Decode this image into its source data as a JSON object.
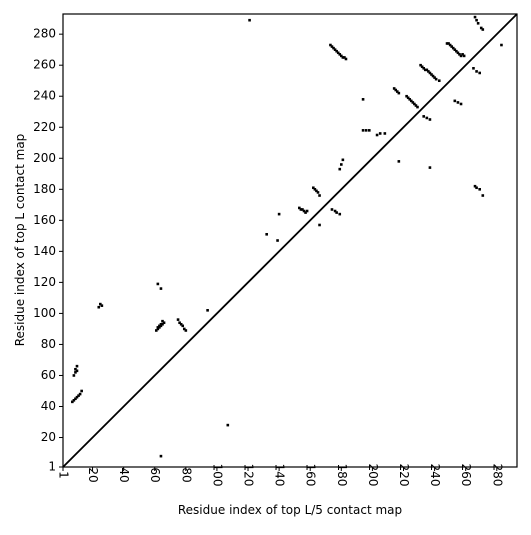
{
  "chart_data": {
    "type": "scatter",
    "x_label": "Residue index of top L/5 contact map",
    "y_label": "Residue index of top L contact map",
    "xlim": [
      1,
      293
    ],
    "ylim": [
      1,
      293
    ],
    "xticks": [
      1,
      20,
      40,
      60,
      80,
      100,
      120,
      140,
      160,
      180,
      200,
      220,
      240,
      260,
      280
    ],
    "yticks": [
      1,
      20,
      40,
      60,
      80,
      100,
      120,
      140,
      160,
      180,
      200,
      220,
      240,
      260,
      280
    ],
    "series": [
      {
        "color": "#000000",
        "x": [
          61,
          62,
          63,
          64,
          65,
          66,
          62,
          63,
          64,
          65,
          62,
          64,
          75,
          76,
          77,
          78,
          79,
          80,
          8,
          9,
          10,
          9,
          10,
          7,
          8,
          9,
          10,
          11,
          12,
          13,
          24,
          25,
          26,
          121,
          132,
          139,
          140,
          162,
          163,
          164,
          165,
          166,
          153,
          154,
          155,
          156,
          157,
          158,
          173,
          174,
          175,
          176,
          177,
          178,
          179,
          180,
          181,
          182,
          183,
          214,
          215,
          216,
          217,
          222,
          223,
          224,
          225,
          226,
          227,
          228,
          229,
          231,
          232,
          233,
          234,
          235,
          236,
          237,
          238,
          239,
          240,
          241,
          243,
          248,
          249,
          250,
          251,
          252,
          253,
          254,
          255,
          256,
          257,
          258,
          259,
          266,
          267,
          268,
          270,
          271,
          194,
          194,
          196,
          198,
          203,
          205,
          208,
          265,
          267,
          269,
          283
        ],
        "y": [
          89,
          90,
          91,
          92,
          93,
          94,
          91,
          92,
          93,
          95,
          119,
          116,
          96,
          94,
          93,
          92,
          90,
          89,
          60,
          62,
          63,
          64,
          66,
          43,
          44,
          45,
          46,
          47,
          48,
          50,
          104,
          106,
          105,
          289,
          151,
          147,
          164,
          181,
          180,
          179,
          178,
          176,
          168,
          167,
          167,
          166,
          165,
          166,
          273,
          272,
          271,
          270,
          269,
          268,
          267,
          266,
          265,
          265,
          264,
          245,
          244,
          243,
          242,
          240,
          239,
          238,
          237,
          236,
          235,
          234,
          233,
          260,
          259,
          258,
          257,
          257,
          256,
          255,
          254,
          253,
          252,
          251,
          250,
          274,
          274,
          273,
          272,
          271,
          270,
          269,
          268,
          267,
          266,
          267,
          266,
          291,
          289,
          287,
          284,
          283,
          238,
          218,
          218,
          218,
          215,
          216,
          216,
          258,
          256,
          255,
          273
        ]
      },
      {
        "color": "#000000",
        "x": [
          107,
          64,
          94,
          179,
          180,
          181,
          166,
          174,
          176,
          177,
          179,
          217,
          233,
          235,
          237,
          237,
          253,
          255,
          257,
          266,
          267,
          269,
          271
        ],
        "y": [
          28,
          8,
          102,
          193,
          196,
          199,
          157,
          167,
          166,
          165,
          164,
          198,
          227,
          226,
          225,
          194,
          237,
          236,
          235,
          182,
          181,
          180,
          176
        ]
      }
    ]
  }
}
